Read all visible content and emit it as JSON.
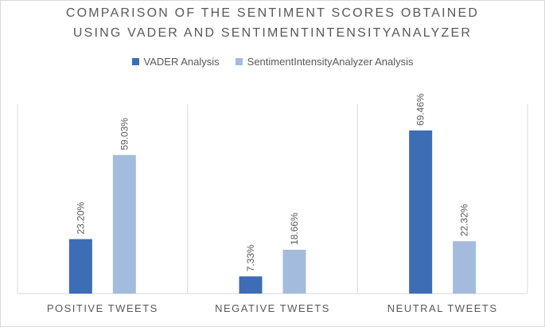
{
  "chart_data": {
    "type": "bar",
    "title_lines": [
      "COMPARISON OF THE SENTIMENT SCORES OBTAINED",
      "USING VADER AND SENTIMENTINTENSITYANALYZER"
    ],
    "categories": [
      "POSITIVE TWEETS",
      "NEGATIVE TWEETS",
      "NEUTRAL TWEETS"
    ],
    "series": [
      {
        "name": "VADER Analysis",
        "color": "#3d6db4",
        "values": [
          23.2,
          7.33,
          69.46
        ],
        "labels": [
          "23.20%",
          "7.33%",
          "69.46%"
        ]
      },
      {
        "name": "SentimentIntensityAnalyzer Analysis",
        "color": "#a3bcdd",
        "values": [
          59.03,
          18.66,
          22.32
        ],
        "labels": [
          "59.03%",
          "18.66%",
          "22.32%"
        ]
      }
    ],
    "ylim": [
      0,
      80
    ],
    "legend_position": "top",
    "grid": false
  }
}
